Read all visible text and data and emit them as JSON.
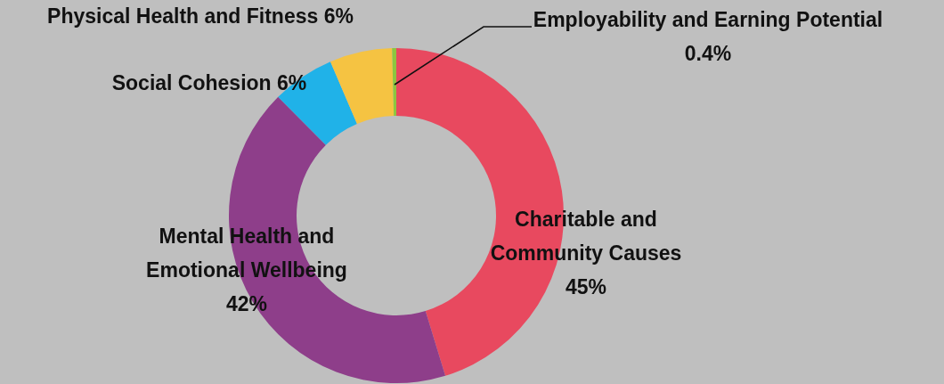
{
  "chart_data": {
    "type": "donut",
    "categories": [
      "Charitable and Community Causes",
      "Mental Health and Emotional Wellbeing",
      "Social Cohesion",
      "Physical Health and Fitness",
      "Employability and Earning Potential"
    ],
    "values": [
      45,
      42,
      6,
      6,
      0.4
    ],
    "colors": [
      "#e8495f",
      "#8e3e8a",
      "#20b2e8",
      "#f5c342",
      "#8dc63f"
    ],
    "value_labels": [
      "45%",
      "42%",
      "6%",
      "6%",
      "0.4%"
    ]
  }
}
